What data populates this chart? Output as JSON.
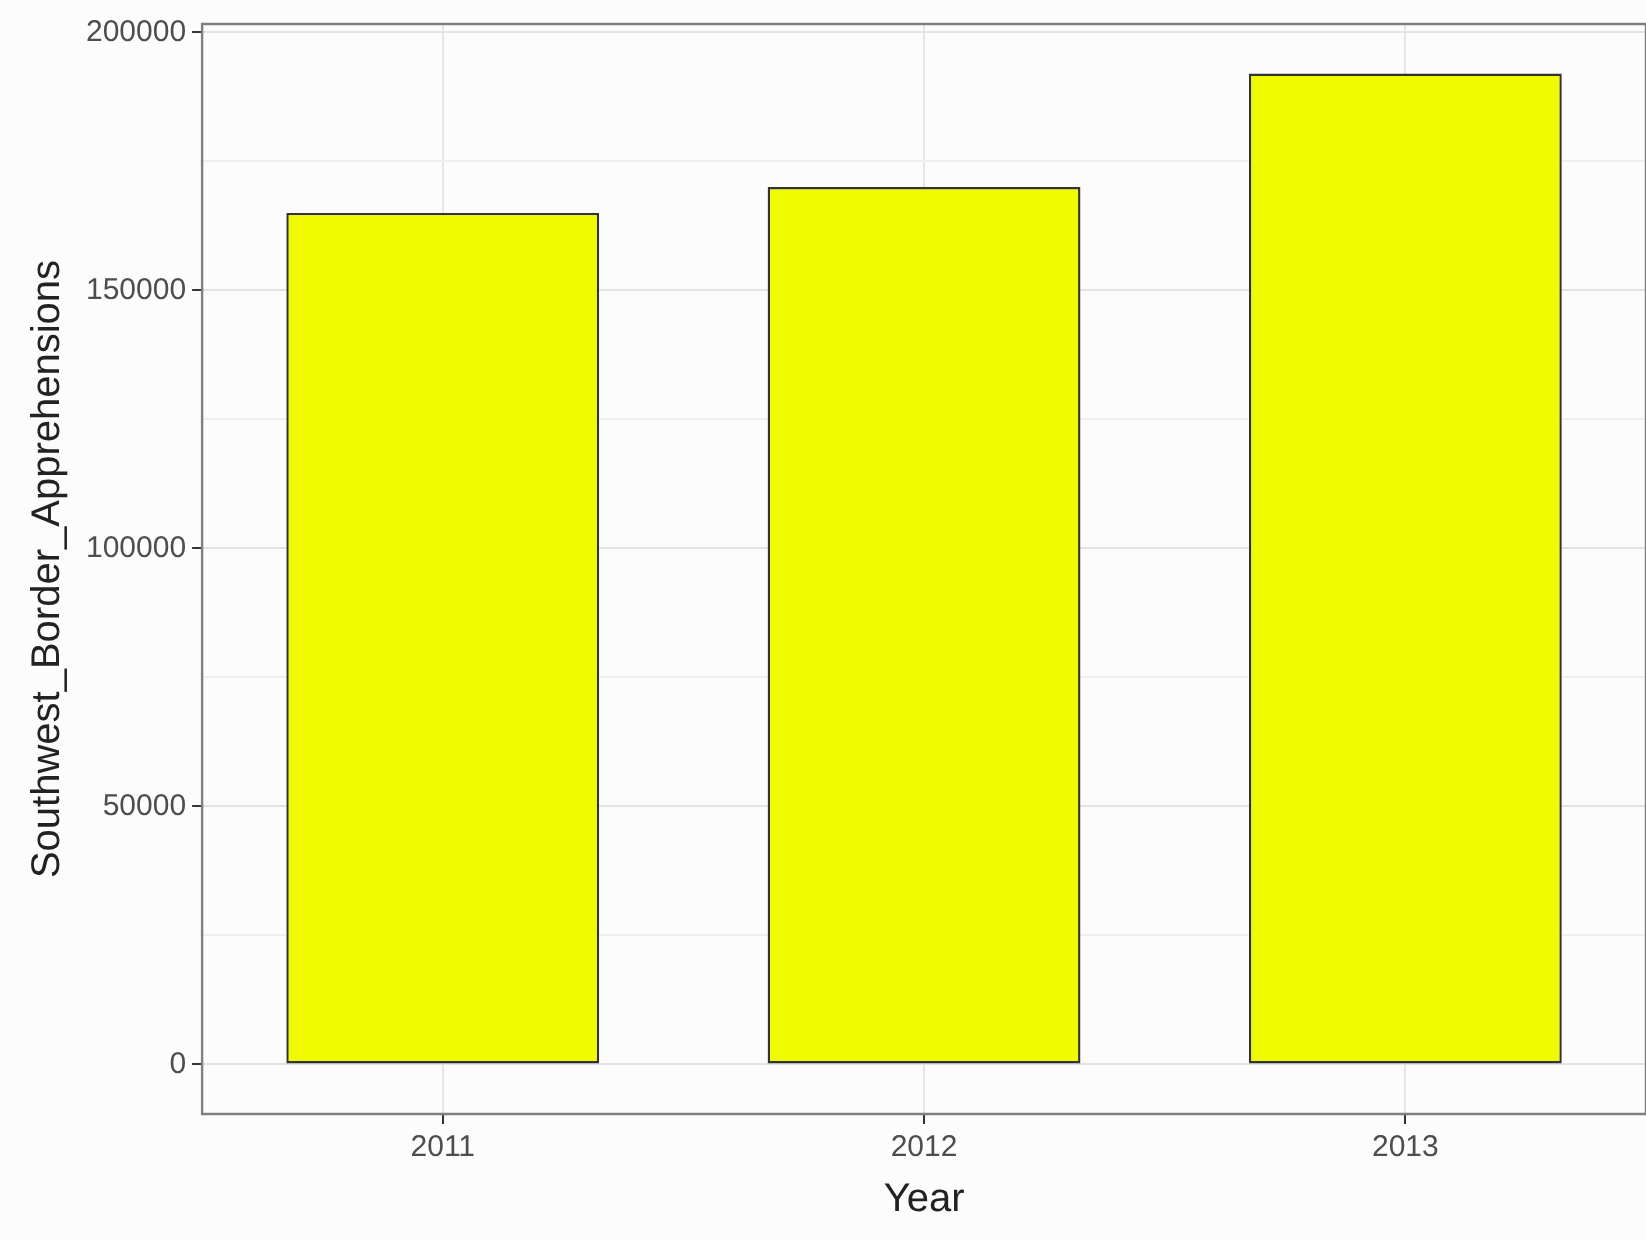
{
  "chart_data": {
    "type": "bar",
    "xlabel": "Year",
    "ylabel": "Southwest_Border_Apprehensions",
    "categories": [
      "2011",
      "2012",
      "2013"
    ],
    "values": [
      165000,
      170000,
      192000
    ],
    "color": "#f0fa00",
    "ylim": [
      -9600,
      201600
    ],
    "yticks": [
      0,
      {
        "value": 25000,
        "label": null
      },
      50000,
      {
        "value": 75000,
        "label": null
      },
      100000,
      {
        "value": 125000,
        "label": null
      },
      150000,
      {
        "value": 175000,
        "label": null
      },
      200000
    ],
    "grid": true,
    "legend": false
  }
}
